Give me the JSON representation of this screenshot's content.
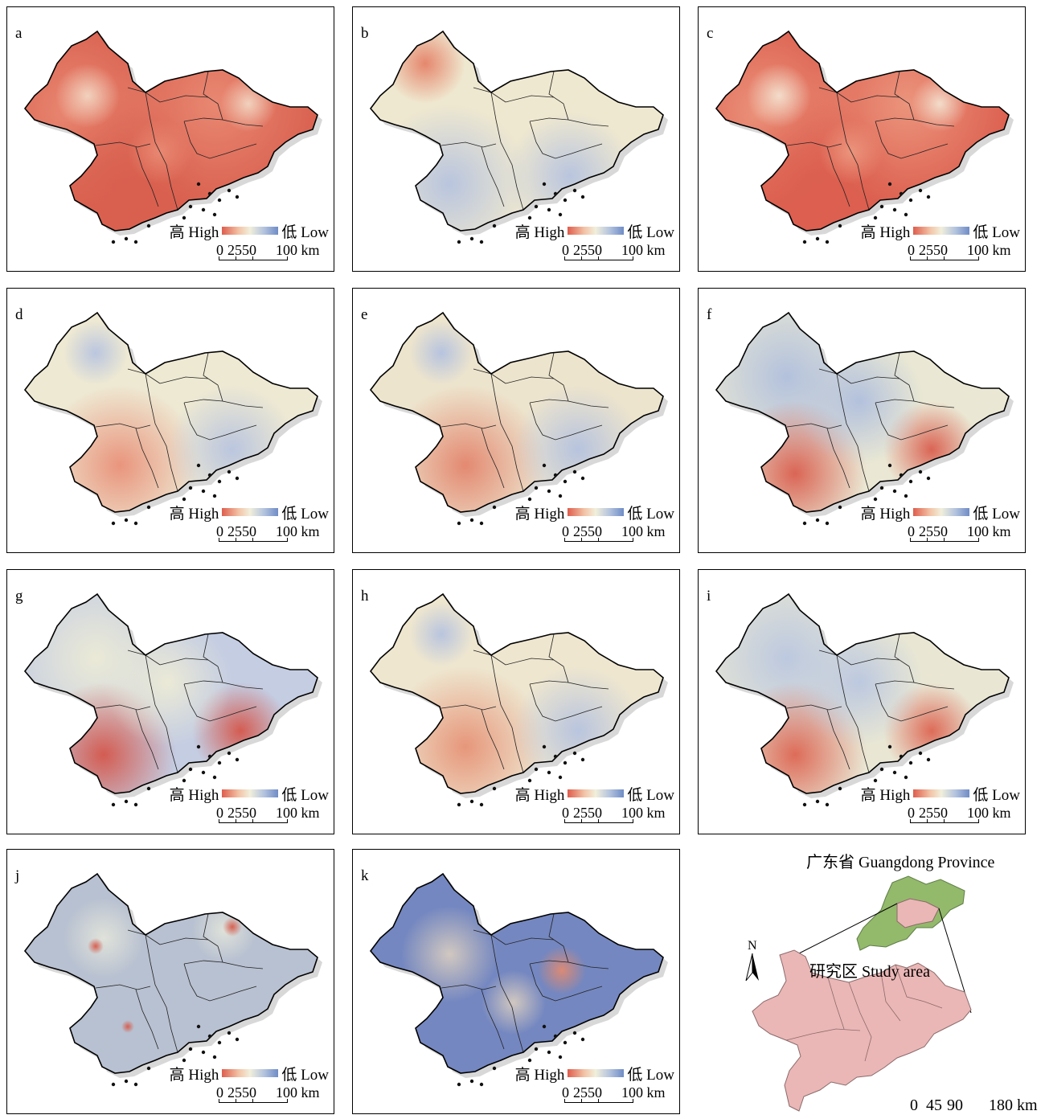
{
  "panels": [
    {
      "label": "a",
      "legend_high": "高 High",
      "legend_low": "低 Low",
      "scale": [
        "0",
        "25",
        "50",
        "100 km"
      ],
      "pattern": "red-dominant",
      "colors": [
        "#d9604f",
        "#e98a74",
        "#f2d6c2"
      ]
    },
    {
      "label": "b",
      "legend_high": "高 High",
      "legend_low": "低 Low",
      "scale": [
        "0",
        "25",
        "50",
        "100 km"
      ],
      "pattern": "beige-blue",
      "colors": [
        "#efe8d0",
        "#b6c3df",
        "#e48268"
      ]
    },
    {
      "label": "c",
      "legend_high": "高 High",
      "legend_low": "低 Low",
      "scale": [
        "0",
        "25",
        "50",
        "100 km"
      ],
      "pattern": "red-dominant",
      "colors": [
        "#dc5f4f",
        "#ec977f",
        "#f3e1cf"
      ]
    },
    {
      "label": "d",
      "legend_high": "高 High",
      "legend_low": "低 Low",
      "scale": [
        "0",
        "25",
        "50",
        "100 km"
      ],
      "pattern": "mixed",
      "colors": [
        "#eee9d3",
        "#e99078",
        "#b8c4df"
      ]
    },
    {
      "label": "e",
      "legend_high": "高 High",
      "legend_low": "低 Low",
      "scale": [
        "0",
        "25",
        "50",
        "100 km"
      ],
      "pattern": "mixed",
      "colors": [
        "#ede4cd",
        "#e3846c",
        "#b4c2df"
      ]
    },
    {
      "label": "f",
      "legend_high": "高 High",
      "legend_low": "低 Low",
      "scale": [
        "0",
        "25",
        "50",
        "100 km"
      ],
      "pattern": "blue-dominant",
      "colors": [
        "#eae8d4",
        "#b0bfdd",
        "#d95e4e"
      ]
    },
    {
      "label": "g",
      "legend_high": "高 High",
      "legend_low": "低 Low",
      "scale": [
        "0",
        "25",
        "50",
        "100 km"
      ],
      "pattern": "blue-dominant",
      "colors": [
        "#c4cde2",
        "#edebd6",
        "#d4564a"
      ]
    },
    {
      "label": "h",
      "legend_high": "高 High",
      "legend_low": "低 Low",
      "scale": [
        "0",
        "25",
        "50",
        "100 km"
      ],
      "pattern": "mixed",
      "colors": [
        "#eee6cf",
        "#e69276",
        "#b6c3df"
      ]
    },
    {
      "label": "i",
      "legend_high": "高 High",
      "legend_low": "低 Low",
      "scale": [
        "0",
        "25",
        "50",
        "100 km"
      ],
      "pattern": "blue-dominant",
      "colors": [
        "#e9e7d4",
        "#bac7e0",
        "#dc6552"
      ]
    },
    {
      "label": "j",
      "legend_high": "高 High",
      "legend_low": "低 Low",
      "scale": [
        "0",
        "25",
        "50",
        "100 km"
      ],
      "pattern": "grey-blue",
      "colors": [
        "#b8c1d1",
        "#e2e4da",
        "#d65a4b"
      ]
    },
    {
      "label": "k",
      "legend_high": "高 High",
      "legend_low": "低 Low",
      "scale": [
        "0",
        "25",
        "50",
        "100 km"
      ],
      "pattern": "blue-speckle",
      "colors": [
        "#7487c0",
        "#d6cbc0",
        "#e08a72"
      ]
    }
  ],
  "inset": {
    "province_title": "广东省 Guangdong Province",
    "study_area": "研究区 Study area",
    "north": "N",
    "scale": [
      "0",
      "45",
      "90",
      "180 km"
    ],
    "colors": {
      "province": "#93b96b",
      "study": "#eab7b6"
    }
  }
}
